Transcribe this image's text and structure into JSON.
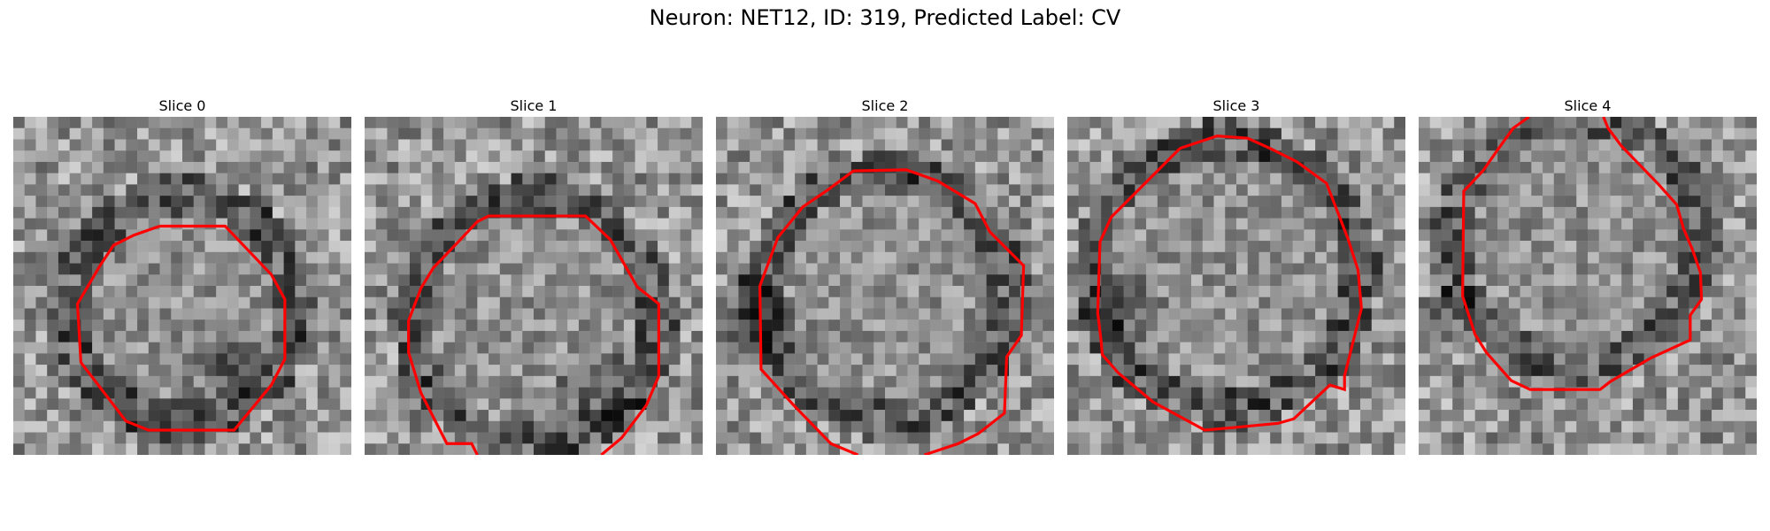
{
  "figure": {
    "title": "Neuron: NET12, ID: 319, Predicted Label: CV"
  },
  "panels": [
    {
      "title": "Slice 0",
      "contour_color": "#ff0000"
    },
    {
      "title": "Slice 1",
      "contour_color": "#ff0000"
    },
    {
      "title": "Slice 2",
      "contour_color": "#ff0000"
    },
    {
      "title": "Slice 3",
      "contour_color": "#ff0000"
    },
    {
      "title": "Slice 4",
      "contour_color": "#ff0000"
    }
  ]
}
